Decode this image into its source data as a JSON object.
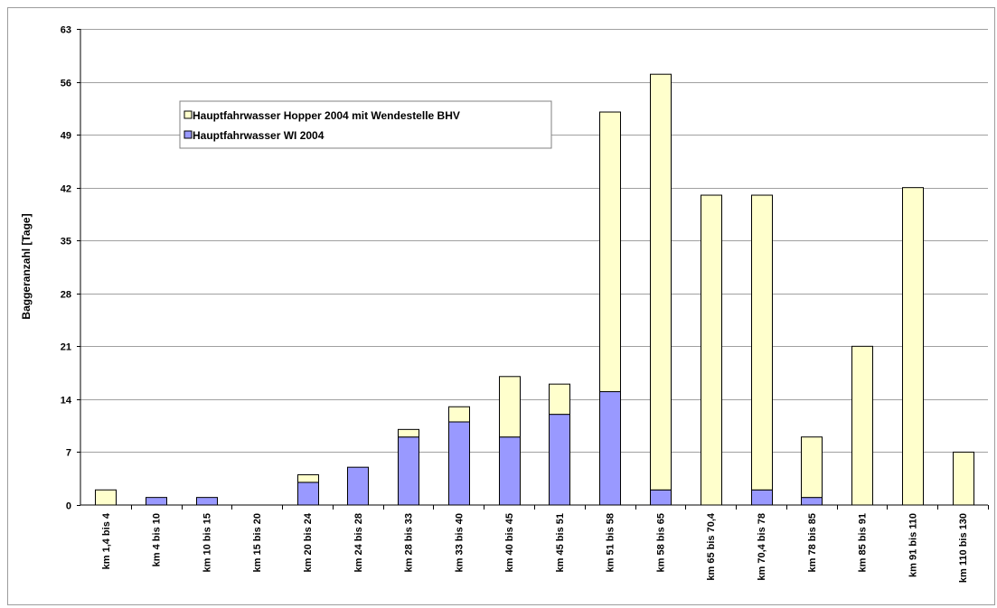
{
  "chart_data": {
    "type": "bar",
    "stacked": true,
    "ylabel": "Baggeranzahl [Tage]",
    "ylim": [
      0,
      63
    ],
    "yticks": [
      0,
      7,
      14,
      21,
      28,
      35,
      42,
      49,
      56,
      63
    ],
    "grid": true,
    "legend_position": "top-left",
    "categories": [
      "km 1,4 bis 4",
      "km 4 bis 10",
      "km 10 bis 15",
      "km 15 bis 20",
      "km 20 bis 24",
      "km 24 bis 28",
      "km 28 bis 33",
      "km 33 bis 40",
      "km 40 bis 45",
      "km 45 bis 51",
      "km 51 bis 58",
      "km 58 bis 65",
      "km 65 bis 70,4",
      "km 70,4 bis 78",
      "km 78 bis 85",
      "km 85 bis 91",
      "km 91 bis 110",
      "km 110 bis 130"
    ],
    "series": [
      {
        "name": "Hauptfahrwasser WI 2004",
        "color": "#9999ff",
        "values": [
          0,
          1,
          1,
          0,
          3,
          5,
          9,
          11,
          9,
          12,
          15,
          2,
          0,
          2,
          1,
          0,
          0,
          0
        ]
      },
      {
        "name": "Hauptfahrwasser Hopper 2004 mit Wendestelle BHV",
        "color": "#ffffcc",
        "values": [
          2,
          0,
          0,
          0,
          1,
          0,
          1,
          2,
          8,
          4,
          37,
          55,
          41,
          39,
          8,
          21,
          42,
          7
        ]
      }
    ]
  }
}
